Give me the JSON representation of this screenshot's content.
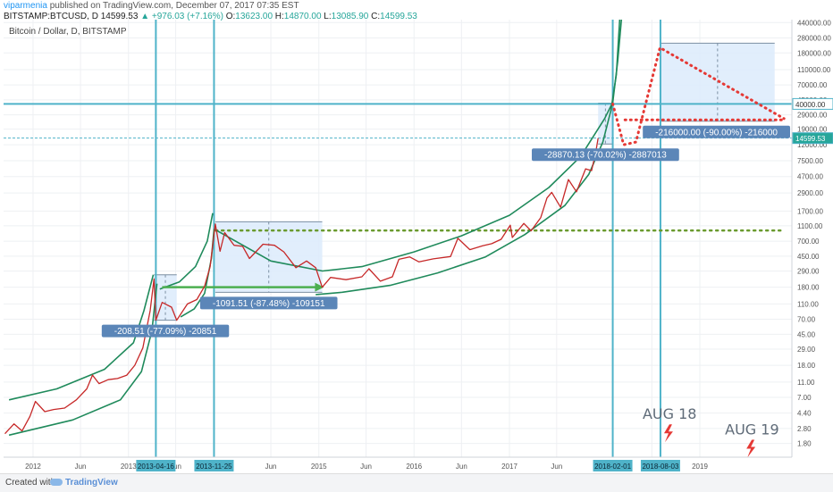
{
  "header": {
    "user": "viparmenia",
    "published": "published on TradingView.com, December 07, 2017 07:35 EST",
    "symbol": "BITSTAMP:BTCUSD, D",
    "last": "14599.53",
    "change": "▲ +976.03 (+7.16%)",
    "open_label": "O:",
    "open": "13623.00",
    "high_label": "H:",
    "high": "14870.00",
    "low_label": "L:",
    "low": "13085.90",
    "close_label": "C:",
    "close": "14599.53"
  },
  "footer": {
    "created_with": "Created with",
    "brand": "TradingView"
  },
  "colors": {
    "price": "#c62828",
    "channel": "#1f8a5b",
    "guide": "#4fb3c9",
    "box_fill": "#dcebfb",
    "box_stroke": "#7b8fa3",
    "badge": "#5b86b8",
    "dotted_green": "#6a9a2e",
    "dotted_red": "#e53935",
    "bolt": "#e53935"
  },
  "chart_data": {
    "type": "line",
    "title": "Bitcoin / Dollar, D, BITSTAMP",
    "y_scale": "log",
    "ylim": [
      1.2,
      480000
    ],
    "xlim": [
      "2011-09-10",
      "2019-12-20"
    ],
    "grid": true,
    "y_ticks": [
      "440000.00",
      "280000.00",
      "180000.00",
      "110000.00",
      "70000.00",
      "45000.00",
      "29000.00",
      "19000.00",
      "12000.00",
      "7500.00",
      "4700.00",
      "2900.00",
      "1700.00",
      "1100.00",
      "700.00",
      "450.00",
      "290.00",
      "180.00",
      "110.00",
      "70.00",
      "45.00",
      "29.00",
      "18.00",
      "11.00",
      "7.00",
      "4.40",
      "2.80",
      "1.80"
    ],
    "x_ticks": [
      {
        "date": "2012-01-01",
        "label": "2012"
      },
      {
        "date": "2012-07-01",
        "label": "Jun"
      },
      {
        "date": "2013-01-01",
        "label": "2013"
      },
      {
        "date": "2013-07-01",
        "label": "Jun"
      },
      {
        "date": "2014-07-01",
        "label": "Jun"
      },
      {
        "date": "2015-01-01",
        "label": "2015"
      },
      {
        "date": "2015-07-01",
        "label": "Jun"
      },
      {
        "date": "2016-01-01",
        "label": "2016"
      },
      {
        "date": "2016-07-01",
        "label": "Jun"
      },
      {
        "date": "2017-01-01",
        "label": "2017"
      },
      {
        "date": "2017-07-01",
        "label": "Jun"
      },
      {
        "date": "2018-07-01",
        "label": "Jul"
      },
      {
        "date": "2019-01-01",
        "label": "2019"
      }
    ],
    "highlighted_dates": [
      "2013-04-16",
      "2013-11-25",
      "2018-02-01",
      "2018-08-03"
    ],
    "price_series": [
      [
        "2011-09-15",
        2.4
      ],
      [
        "2011-10-20",
        3.2
      ],
      [
        "2011-11-20",
        2.6
      ],
      [
        "2011-12-20",
        4.0
      ],
      [
        "2012-01-10",
        6.2
      ],
      [
        "2012-02-15",
        4.6
      ],
      [
        "2012-03-20",
        4.9
      ],
      [
        "2012-05-01",
        5.1
      ],
      [
        "2012-06-15",
        6.5
      ],
      [
        "2012-07-25",
        9.0
      ],
      [
        "2012-08-16",
        13.5
      ],
      [
        "2012-09-10",
        10.5
      ],
      [
        "2012-10-15",
        11.8
      ],
      [
        "2012-11-20",
        12.2
      ],
      [
        "2012-12-25",
        13.4
      ],
      [
        "2013-01-25",
        18.0
      ],
      [
        "2013-02-25",
        30.0
      ],
      [
        "2013-03-25",
        90.0
      ],
      [
        "2013-04-09",
        230.0
      ],
      [
        "2013-04-16",
        68.0
      ],
      [
        "2013-05-10",
        115.0
      ],
      [
        "2013-06-15",
        100.0
      ],
      [
        "2013-07-05",
        68.0
      ],
      [
        "2013-08-15",
        110.0
      ],
      [
        "2013-09-20",
        125.0
      ],
      [
        "2013-10-20",
        185.0
      ],
      [
        "2013-11-10",
        330.0
      ],
      [
        "2013-11-30",
        1160.0
      ],
      [
        "2013-12-18",
        520.0
      ],
      [
        "2014-01-05",
        900.0
      ],
      [
        "2014-02-10",
        620.0
      ],
      [
        "2014-03-15",
        600.0
      ],
      [
        "2014-04-10",
        420.0
      ],
      [
        "2014-06-01",
        640.0
      ],
      [
        "2014-07-15",
        620.0
      ],
      [
        "2014-08-20",
        510.0
      ],
      [
        "2014-10-05",
        320.0
      ],
      [
        "2014-11-15",
        390.0
      ],
      [
        "2014-12-20",
        320.0
      ],
      [
        "2015-01-14",
        180.0
      ],
      [
        "2015-02-15",
        240.0
      ],
      [
        "2015-04-15",
        225.0
      ],
      [
        "2015-06-15",
        245.0
      ],
      [
        "2015-07-12",
        310.0
      ],
      [
        "2015-08-25",
        215.0
      ],
      [
        "2015-10-10",
        245.0
      ],
      [
        "2015-11-04",
        410.0
      ],
      [
        "2015-12-15",
        440.0
      ],
      [
        "2016-01-20",
        380.0
      ],
      [
        "2016-03-15",
        415.0
      ],
      [
        "2016-05-20",
        445.0
      ],
      [
        "2016-06-17",
        760.0
      ],
      [
        "2016-08-02",
        545.0
      ],
      [
        "2016-09-20",
        610.0
      ],
      [
        "2016-10-25",
        650.0
      ],
      [
        "2016-11-30",
        740.0
      ],
      [
        "2017-01-04",
        1120.0
      ],
      [
        "2017-01-12",
        780.0
      ],
      [
        "2017-02-25",
        1180.0
      ],
      [
        "2017-03-25",
        950.0
      ],
      [
        "2017-05-01",
        1400.0
      ],
      [
        "2017-05-25",
        2500.0
      ],
      [
        "2017-06-12",
        2950.0
      ],
      [
        "2017-07-16",
        1900.0
      ],
      [
        "2017-08-15",
        4300.0
      ],
      [
        "2017-09-15",
        3000.0
      ],
      [
        "2017-10-20",
        5900.0
      ],
      [
        "2017-11-12",
        5600.0
      ],
      [
        "2017-11-28",
        9700.0
      ],
      [
        "2017-12-07",
        14599.53
      ]
    ],
    "channel_curves": [
      [
        [
          "2011-10-01",
          2.3
        ],
        [
          "2012-06-01",
          3.6
        ],
        [
          "2012-12-01",
          6.5
        ],
        [
          "2013-02-20",
          15.0
        ],
        [
          "2013-04-01",
          50.0
        ],
        [
          "2013-04-20",
          200.0
        ]
      ],
      [
        [
          "2011-10-01",
          6.5
        ],
        [
          "2012-04-01",
          9.0
        ],
        [
          "2012-10-01",
          16.0
        ],
        [
          "2013-01-20",
          35.0
        ],
        [
          "2013-03-01",
          90.0
        ],
        [
          "2013-04-06",
          260.0
        ]
      ],
      [
        [
          "2013-07-20",
          75.0
        ],
        [
          "2013-09-10",
          95.0
        ],
        [
          "2013-10-20",
          150.0
        ],
        [
          "2013-11-15",
          420.0
        ],
        [
          "2013-11-25",
          1000.0
        ]
      ],
      [
        [
          "2013-05-01",
          170.0
        ],
        [
          "2013-07-15",
          210.0
        ],
        [
          "2013-09-15",
          330.0
        ],
        [
          "2013-10-30",
          700.0
        ],
        [
          "2013-11-20",
          1600.0
        ]
      ],
      [
        [
          "2013-11-25",
          1000.0
        ],
        [
          "2014-07-01",
          390.0
        ],
        [
          "2015-01-15",
          290.0
        ],
        [
          "2015-06-15",
          330.0
        ],
        [
          "2016-01-01",
          510.0
        ],
        [
          "2016-07-01",
          820.0
        ],
        [
          "2017-01-01",
          1500.0
        ],
        [
          "2017-06-01",
          3400.0
        ],
        [
          "2017-10-01",
          8500.0
        ],
        [
          "2018-01-01",
          26000.0
        ],
        [
          "2018-02-01",
          42000.0
        ],
        [
          "2018-02-20",
          140000.0
        ],
        [
          "2018-03-08",
          560000.0
        ]
      ],
      [
        [
          "2014-12-20",
          145.0
        ],
        [
          "2015-04-01",
          155.0
        ],
        [
          "2015-10-01",
          190.0
        ],
        [
          "2016-04-01",
          275.0
        ],
        [
          "2016-10-01",
          440.0
        ],
        [
          "2017-03-01",
          850.0
        ],
        [
          "2017-08-01",
          2000.0
        ],
        [
          "2017-11-01",
          5000.0
        ],
        [
          "2017-12-25",
          13000.0
        ],
        [
          "2018-01-25",
          33000.0
        ],
        [
          "2018-02-15",
          95000.0
        ],
        [
          "2018-03-01",
          560000.0
        ]
      ]
    ],
    "boxes": [
      {
        "x0": "2013-04-09",
        "x1": "2013-07-05",
        "y_top": 260.0,
        "y_bottom": 68.0,
        "label": "-208.51 (-77.09%) -20851"
      },
      {
        "x0": "2013-11-30",
        "x1": "2015-01-14",
        "y_top": 1240.0,
        "y_bottom": 155.0,
        "label": "-1091.51 (-87.48%) -109151"
      },
      {
        "x0": "2017-12-07",
        "x1": "2018-02-01",
        "y_top": 41000.0,
        "y_bottom": 12300.0,
        "label": "-28870.13 (-70.02%) -2887013"
      },
      {
        "x0": "2018-08-03",
        "x1": "2019-10-15",
        "y_top": 240000.0,
        "y_bottom": 24000.0,
        "label": "-216000.00 (-90.00%) -216000"
      }
    ],
    "levels": [
      {
        "price": 40000.0,
        "label": "40000.00"
      },
      {
        "price": 14599.53,
        "label": "14599.53"
      }
    ],
    "annotations": [
      {
        "text": "AUG 18",
        "date": "2018-08-03",
        "price": 3.0
      },
      {
        "text": "AUG 19",
        "date": "2019-06-15",
        "price": 1.9
      }
    ],
    "arrow_2014": [
      [
        "2013-05-10",
        180.0
      ],
      [
        "2014-12-31",
        180.0
      ]
    ],
    "dotted_green_level": [
      [
        "2013-12-01",
        960.0
      ],
      [
        "2019-11-20",
        960.0
      ]
    ],
    "red_projection": [
      [
        "2018-02-01",
        40000.0
      ],
      [
        "2018-03-15",
        12000.0
      ],
      [
        "2018-05-01",
        13000.0
      ],
      [
        "2018-08-01",
        210000.0
      ],
      [
        "2019-11-20",
        26000.0
      ]
    ],
    "red_level": [
      [
        "2018-03-20",
        25000.0
      ],
      [
        "2019-11-20",
        25000.0
      ]
    ]
  }
}
